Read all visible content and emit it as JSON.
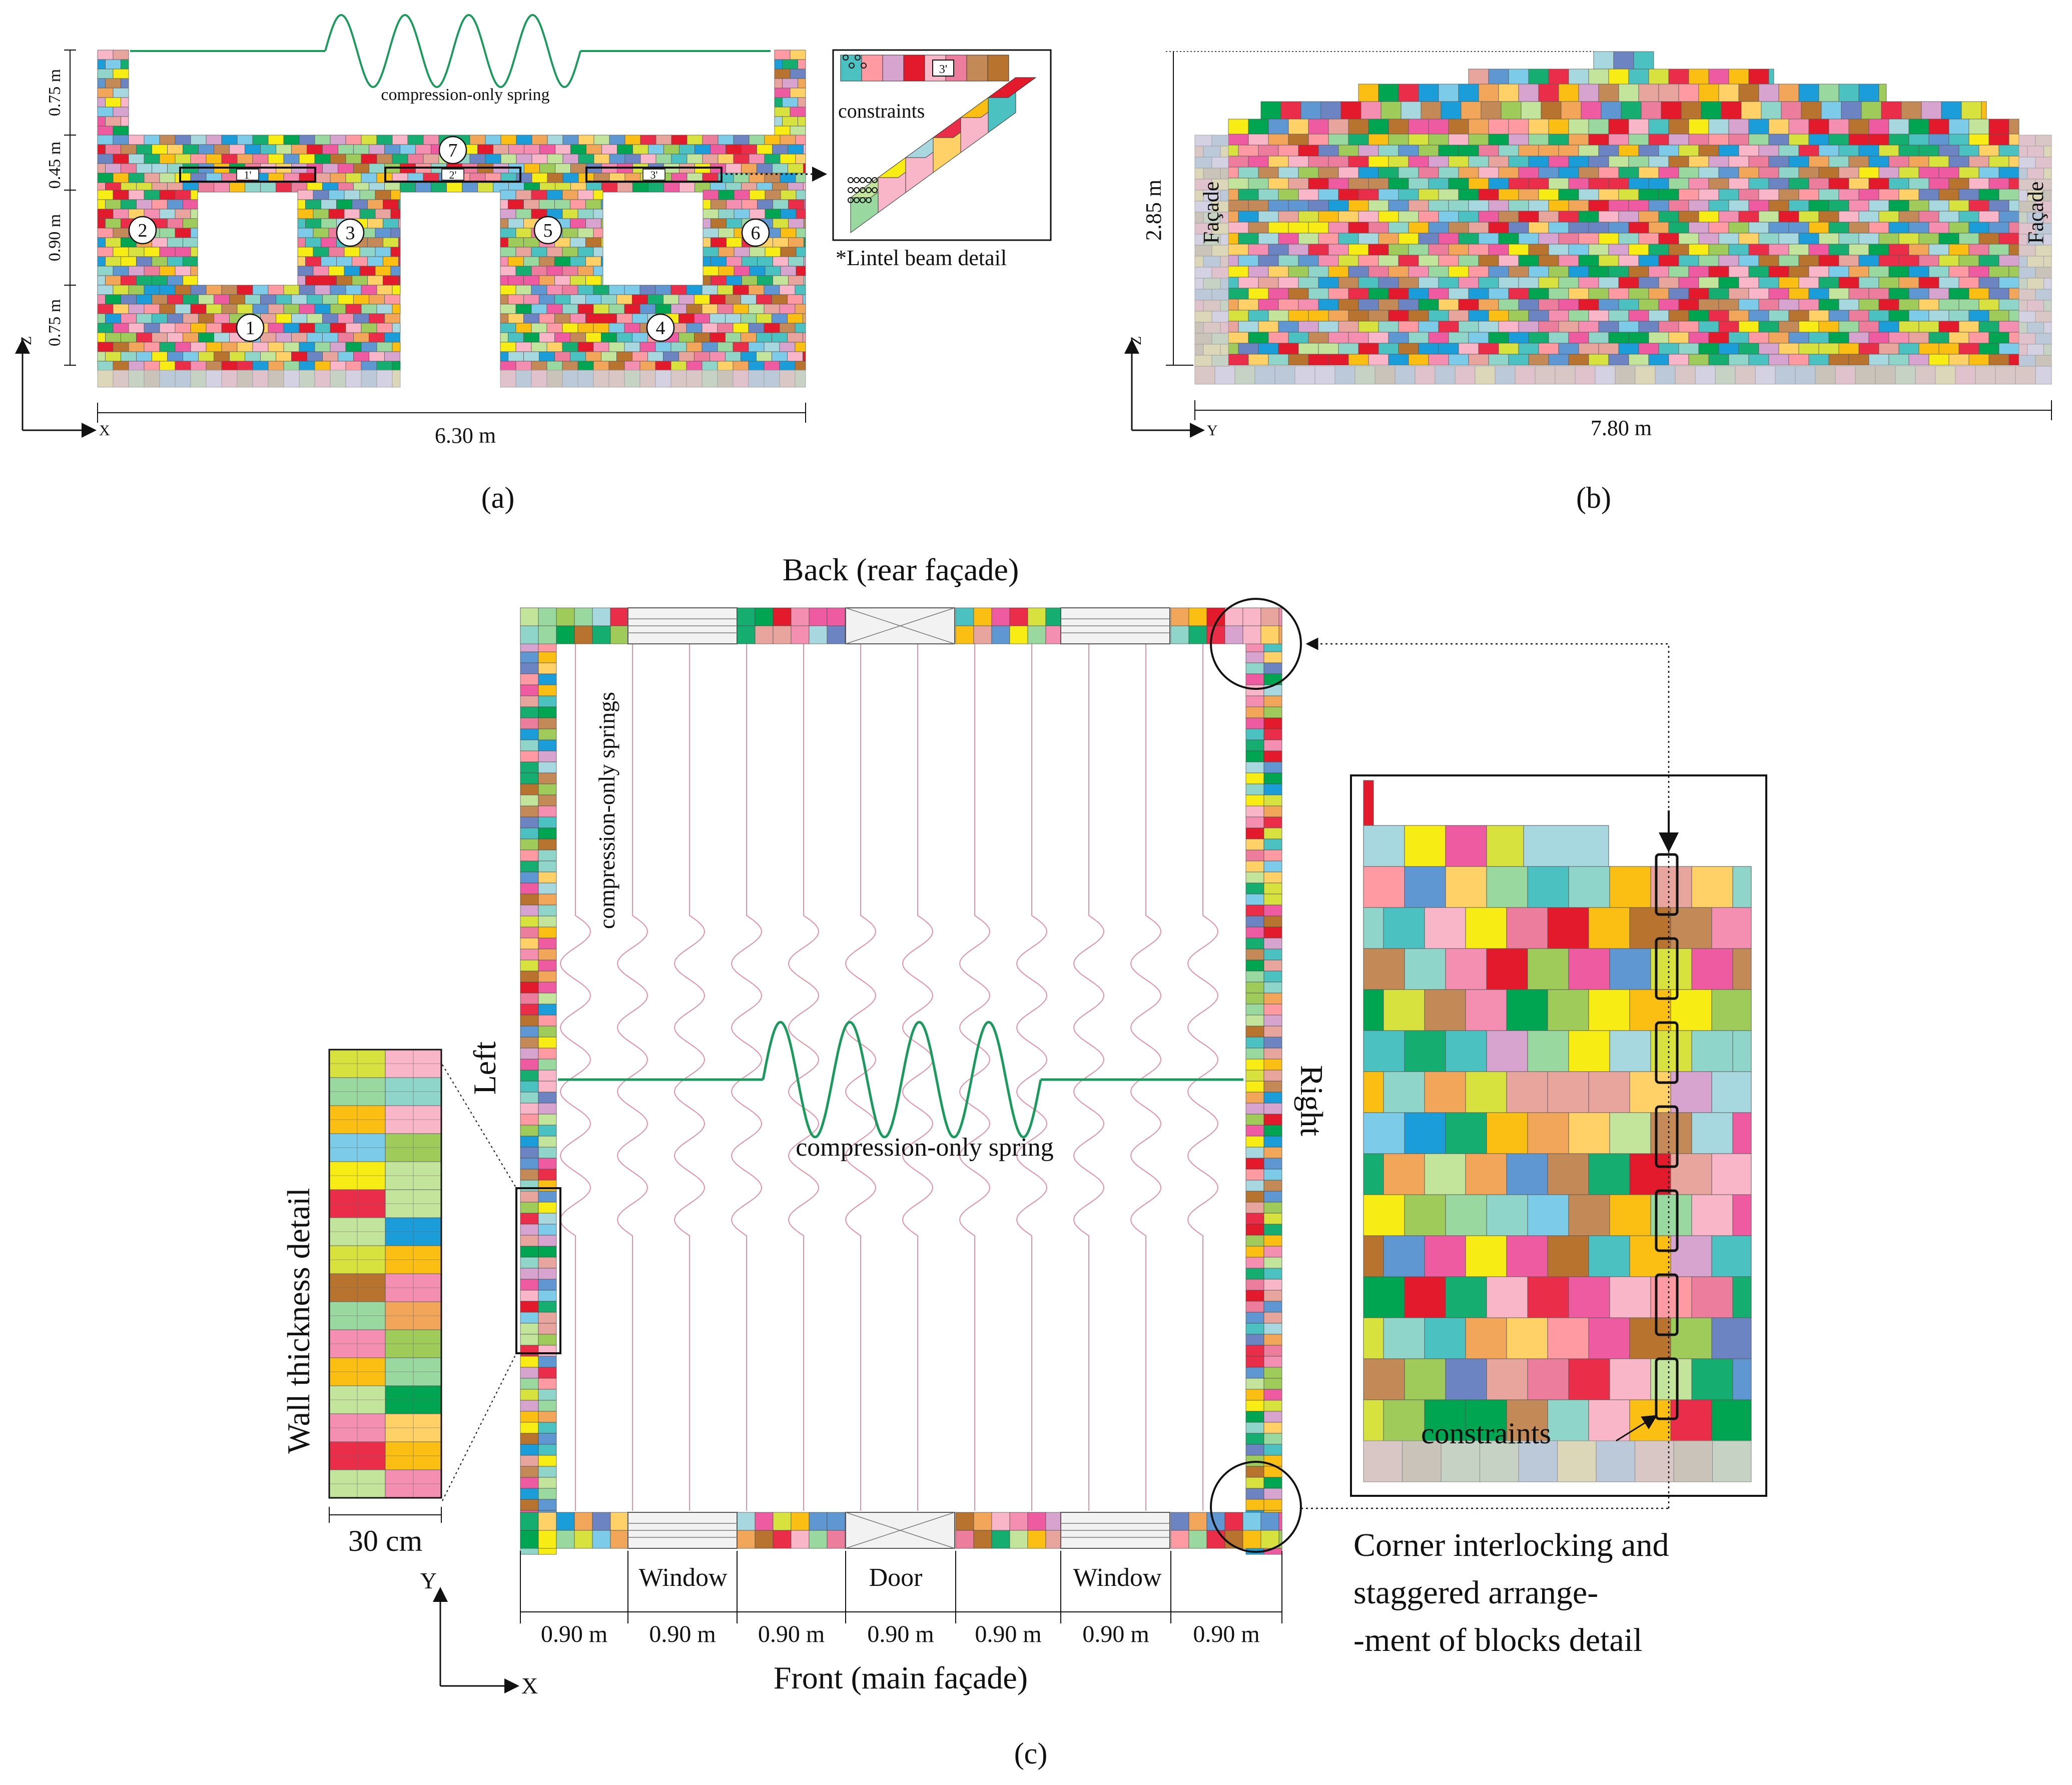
{
  "palette": [
    "#e31a2c",
    "#00a551",
    "#f7ec13",
    "#1b9dd9",
    "#ef5ba1",
    "#b8732e",
    "#7ccbe8",
    "#f2a65a",
    "#9fcb5b",
    "#d8e23e",
    "#ed7d9c",
    "#6c85c2",
    "#16ad70",
    "#f9b6c8",
    "#8fd5c9",
    "#e8a59e",
    "#c38a57",
    "#ea2e49",
    "#d7a4cf",
    "#99d9a0",
    "#fbbf14",
    "#a7d8df",
    "#4cc1c1",
    "#f48fb1",
    "#5f97d3",
    "#c3e59b",
    "#ff9aa2",
    "#ffd166"
  ],
  "pale_palette": [
    "#d9c7c6",
    "#c6d2c4",
    "#dcd7b8",
    "#bcc9d8",
    "#e0c2cd",
    "#c9c3b9",
    "#d4d1e2"
  ],
  "spring_color": "#1a9a5c",
  "spring_light_color": "#e58fa6",
  "panel_a": {
    "label": "(a)",
    "dims": {
      "top": "0.75 m",
      "lintel": "0.45 m",
      "window": "0.90 m",
      "bottom": "0.75 m",
      "width": "6.30 m"
    },
    "axes": {
      "z": "Z",
      "x": "X"
    },
    "spring_label": "compression-only spring",
    "piers": [
      "1",
      "2",
      "3",
      "4",
      "5",
      "6",
      "7"
    ],
    "lintels": [
      "1'",
      "2'",
      "3'"
    ],
    "detail": {
      "constraints": "constraints",
      "caption": "*Lintel beam detail",
      "lintel_tag": "3'"
    }
  },
  "panel_b": {
    "label": "(b)",
    "height": "2.85 m",
    "width": "7.80 m",
    "facade_left": "Façade",
    "facade_right": "Façade",
    "axes": {
      "z": "Z",
      "y": "Y"
    }
  },
  "panel_c": {
    "label": "(c)",
    "back": "Back (rear façade)",
    "front": "Front (main façade)",
    "left": "Left",
    "right": "Right",
    "springs_label": "compression-only springs",
    "spring_label": "compression-only spring",
    "openings": [
      "Window",
      "Door",
      "Window"
    ],
    "spacings": [
      "0.90 m",
      "0.90 m",
      "0.90 m",
      "0.90 m",
      "0.90 m",
      "0.90 m",
      "0.90 m"
    ],
    "axes": {
      "y": "Y",
      "x": "X"
    },
    "wall_detail": {
      "title": "Wall thickness detail",
      "width": "30 cm"
    },
    "corner_detail": {
      "constraints": "constraints",
      "caption": [
        "Corner interlocking and",
        "staggered arrange-",
        "-ment of blocks detail"
      ]
    }
  }
}
